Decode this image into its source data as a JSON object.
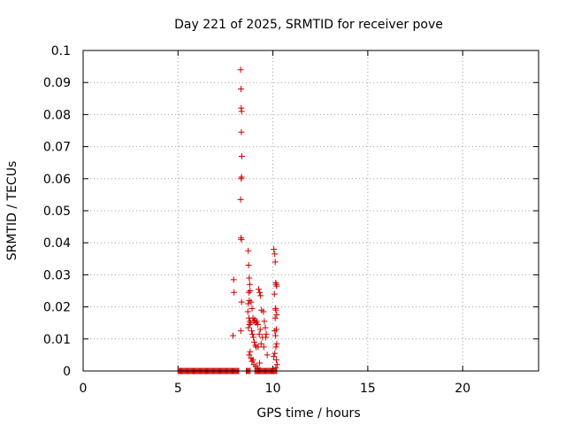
{
  "chart_data": {
    "type": "scatter",
    "title": "Day 221 of 2025, SRMTID for receiver pove",
    "xlabel": "GPS time / hours",
    "ylabel": "SRMTID / TECUs",
    "xlim": [
      0,
      24
    ],
    "ylim": [
      0,
      0.1
    ],
    "x_ticks": [
      "0",
      "5",
      "10",
      "15",
      "20"
    ],
    "x_tick_values": [
      0,
      5,
      10,
      15,
      20
    ],
    "y_ticks": [
      "0",
      "0.01",
      "0.02",
      "0.03",
      "0.04",
      "0.05",
      "0.06",
      "0.07",
      "0.08",
      "0.09",
      "0.1"
    ],
    "y_tick_values": [
      0,
      0.01,
      0.02,
      0.03,
      0.04,
      0.05,
      0.06,
      0.07,
      0.08,
      0.09,
      0.1
    ],
    "grid": true,
    "marker": "+",
    "colors": {
      "series": "#cc0000",
      "grid": "#a0a0a0",
      "axis": "#000000"
    },
    "series": [
      {
        "values_x": [
          7.93,
          7.95,
          7.9,
          8.3,
          8.32,
          8.33,
          8.35,
          8.34,
          8.36,
          8.33,
          8.35,
          8.3,
          8.32,
          8.34,
          8.35,
          8.31,
          8.7,
          8.72,
          8.75,
          8.78,
          8.8,
          8.73,
          8.76,
          8.7,
          8.68,
          8.74,
          8.79,
          8.82,
          8.77,
          8.71,
          8.85,
          8.9,
          8.95,
          9.0,
          9.05,
          9.1,
          9.15,
          9.2,
          8.88,
          8.92,
          8.97,
          9.02,
          9.08,
          9.12,
          9.3,
          9.35,
          9.25,
          9.4,
          9.33,
          9.28,
          9.45,
          9.38,
          9.22,
          9.5,
          9.55,
          9.6,
          9.65,
          9.7,
          9.52,
          9.62,
          10.05,
          10.1,
          10.12,
          10.15,
          10.18,
          10.2,
          10.08,
          10.14,
          10.16,
          10.2,
          10.12,
          10.18,
          10.1,
          10.14,
          10.2,
          10.16,
          10.1,
          10.05,
          10.18,
          10.22,
          10.15,
          8.75,
          8.8,
          8.85,
          8.9,
          9.0,
          9.1,
          9.2,
          9.3,
          8.95
        ],
        "values_y": [
          0.0285,
          0.0245,
          0.011,
          0.094,
          0.088,
          0.082,
          0.081,
          0.0745,
          0.067,
          0.06,
          0.0605,
          0.0535,
          0.0415,
          0.041,
          0.0215,
          0.0125,
          0.0375,
          0.033,
          0.029,
          0.027,
          0.025,
          0.0245,
          0.022,
          0.021,
          0.0185,
          0.0165,
          0.0155,
          0.015,
          0.0145,
          0.0135,
          0.0215,
          0.0195,
          0.0165,
          0.0155,
          0.016,
          0.015,
          0.0155,
          0.0145,
          0.0125,
          0.0115,
          0.0105,
          0.009,
          0.008,
          0.0075,
          0.0245,
          0.0235,
          0.0255,
          0.019,
          0.013,
          0.0115,
          0.0105,
          0.0085,
          0.0075,
          0.0185,
          0.0155,
          0.0135,
          0.0115,
          0.005,
          0.0075,
          0.0105,
          0.038,
          0.0365,
          0.034,
          0.0275,
          0.027,
          0.0265,
          0.024,
          0.0195,
          0.019,
          0.0175,
          0.0165,
          0.013,
          0.0125,
          0.011,
          0.0085,
          0.0075,
          0.0055,
          0.0045,
          0.0035,
          0.002,
          0.001,
          0.005,
          0.006,
          0.004,
          0.003,
          0.002,
          0.0015,
          0.001,
          0.0025,
          0.0035
        ]
      },
      {
        "values_x": [
          5.0,
          5.05,
          5.1,
          5.15,
          5.2,
          5.25,
          5.3,
          5.35,
          5.4,
          5.45,
          5.5,
          5.55,
          5.6,
          5.65,
          5.7,
          5.75,
          5.8,
          5.85,
          5.9,
          5.95,
          6.0,
          6.05,
          6.1,
          6.15,
          6.2,
          6.25,
          6.3,
          6.35,
          6.4,
          6.45,
          6.5,
          6.55,
          6.6,
          6.65,
          6.7,
          6.75,
          6.8,
          6.85,
          6.9,
          6.95,
          7.0,
          7.05,
          7.1,
          7.15,
          7.2,
          7.25,
          7.3,
          7.35,
          7.4,
          7.45,
          7.5,
          7.55,
          7.6,
          7.65,
          7.7,
          7.75,
          7.8,
          7.85,
          7.9,
          7.95,
          8.0,
          8.05,
          8.1,
          8.15,
          8.2,
          8.6,
          8.65,
          8.7,
          8.75,
          8.8,
          9.05,
          9.1,
          9.15,
          9.2,
          9.25,
          9.3,
          9.35,
          9.4,
          9.45,
          9.5,
          9.55,
          9.6,
          9.65,
          9.7,
          9.75,
          9.8,
          9.85,
          9.9,
          9.95,
          10.0,
          10.05,
          10.1,
          10.15,
          10.2
        ],
        "values_y": [
          0,
          0,
          0,
          0,
          0,
          0,
          0,
          0,
          0,
          0,
          0,
          0,
          0,
          0,
          0,
          0,
          0,
          0,
          0,
          0,
          0,
          0,
          0,
          0,
          0,
          0,
          0,
          0,
          0,
          0,
          0,
          0,
          0,
          0,
          0,
          0,
          0,
          0,
          0,
          0,
          0,
          0,
          0,
          0,
          0,
          0,
          0,
          0,
          0,
          0,
          0,
          0,
          0,
          0,
          0,
          0,
          0,
          0,
          0,
          0,
          0,
          0,
          0,
          0,
          0,
          0,
          0,
          0,
          0,
          0,
          0,
          0,
          0,
          0,
          0,
          0,
          0,
          0,
          0,
          0,
          0,
          0,
          0,
          0,
          0,
          0,
          0,
          0,
          0,
          0,
          0,
          0,
          0,
          0
        ]
      }
    ]
  }
}
